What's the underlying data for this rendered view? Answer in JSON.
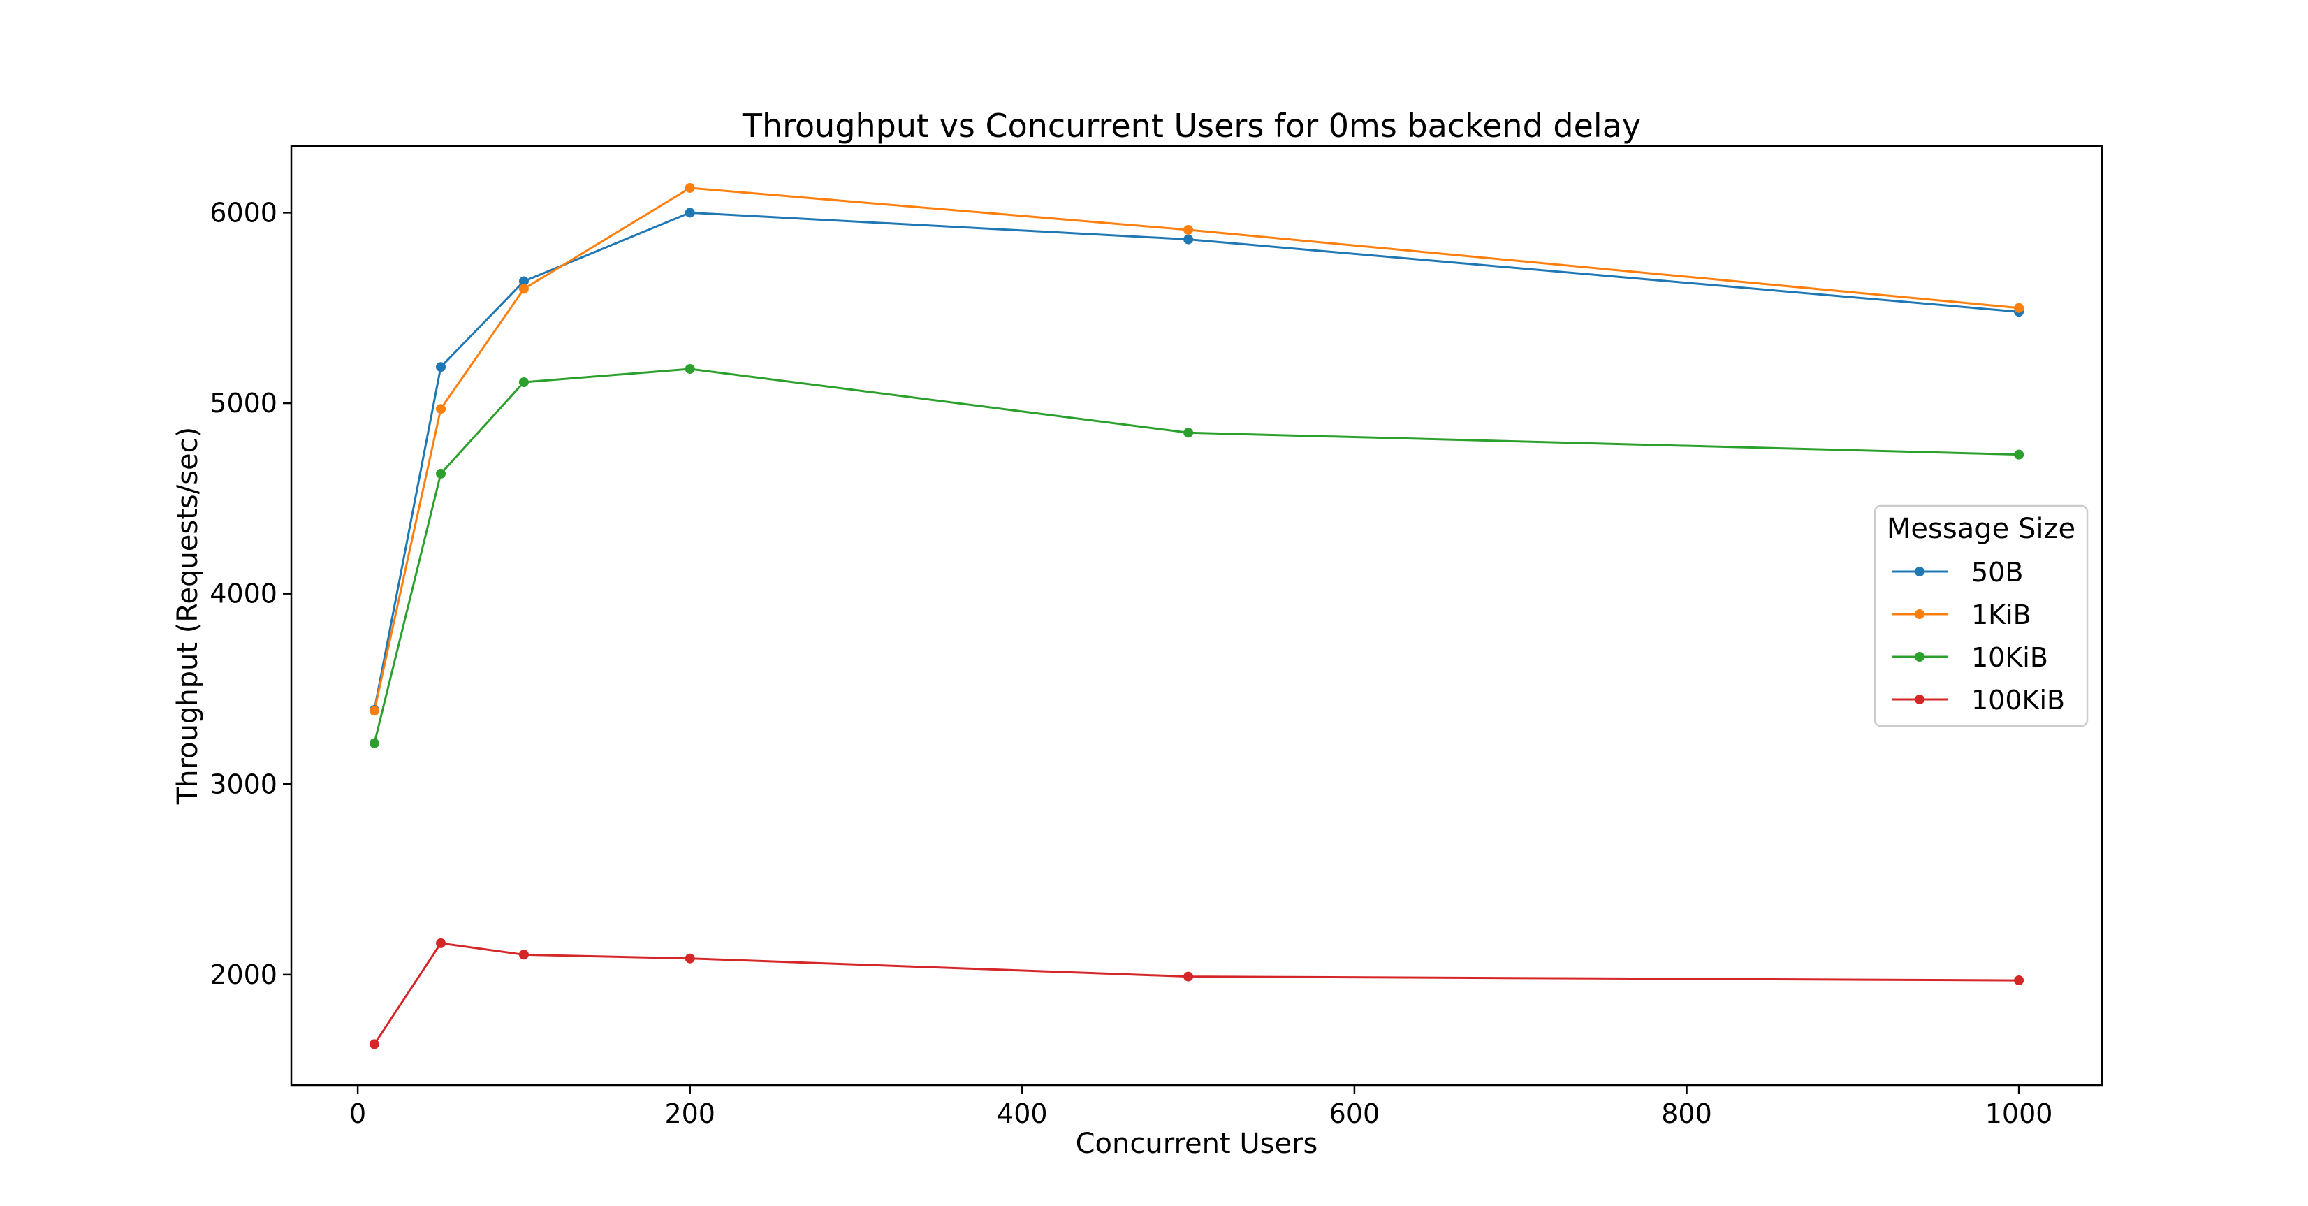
{
  "chart_data": {
    "type": "line",
    "title": "Throughput vs Concurrent Users for 0ms backend delay",
    "xlabel": "Concurrent Users",
    "ylabel": "Throughput (Requests/sec)",
    "xlim": [
      -40,
      1050
    ],
    "ylim": [
      1420,
      6350
    ],
    "xticks": [
      0,
      200,
      400,
      600,
      800,
      1000
    ],
    "yticks": [
      2000,
      3000,
      4000,
      5000,
      6000
    ],
    "grid": false,
    "legend": {
      "title": "Message Size",
      "placement": "center-right"
    },
    "x": [
      10,
      50,
      100,
      200,
      500,
      1000
    ],
    "series": [
      {
        "name": "50B",
        "color": "#1f77b4",
        "values": [
          3390,
          5190,
          5640,
          6000,
          5860,
          5480
        ]
      },
      {
        "name": "1KiB",
        "color": "#ff7f0e",
        "values": [
          3385,
          4970,
          5600,
          6130,
          5910,
          5500
        ]
      },
      {
        "name": "10KiB",
        "color": "#2ca02c",
        "values": [
          3215,
          4630,
          5110,
          5180,
          4845,
          4730
        ]
      },
      {
        "name": "100KiB",
        "color": "#d62728",
        "values": [
          1635,
          2165,
          2105,
          2085,
          1990,
          1970
        ]
      }
    ]
  }
}
